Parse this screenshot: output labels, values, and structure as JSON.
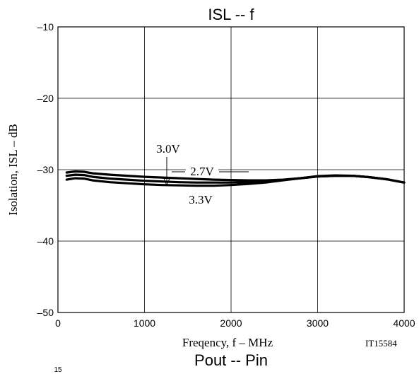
{
  "chart_data": {
    "type": "line",
    "title": "ISL -- f",
    "xlabel": "Freqency, f  –  MHz",
    "ylabel": "Isolation, ISL  –  dB",
    "xlim": [
      0,
      4000
    ],
    "ylim": [
      -50,
      -10
    ],
    "xticks": [
      0,
      1000,
      2000,
      3000,
      4000
    ],
    "xtick_labels": [
      "0",
      "1000",
      "2000",
      "3000",
      "4000"
    ],
    "yticks": [
      -50,
      -40,
      -30,
      -20,
      -10
    ],
    "ytick_labels": [
      "–50",
      "–40",
      "–30",
      "–20",
      "–10"
    ],
    "grid": true,
    "series": [
      {
        "name": "2.7V",
        "x": [
          100,
          200,
          300,
          400,
          600,
          800,
          1000,
          1200,
          1400,
          1600,
          1800,
          2000,
          2200,
          2400,
          2600,
          2800,
          3000,
          3200,
          3400,
          3600,
          3800,
          4000
        ],
        "y": [
          -30.4,
          -30.25,
          -30.3,
          -30.5,
          -30.7,
          -30.85,
          -31.0,
          -31.1,
          -31.2,
          -31.3,
          -31.4,
          -31.45,
          -31.5,
          -31.5,
          -31.4,
          -31.2,
          -30.9,
          -30.8,
          -30.85,
          -31.05,
          -31.35,
          -31.8
        ]
      },
      {
        "name": "3.0V",
        "x": [
          100,
          200,
          300,
          400,
          600,
          800,
          1000,
          1200,
          1400,
          1600,
          1800,
          2000,
          2200,
          2400,
          2600,
          2800,
          3000,
          3200,
          3400,
          3600,
          3800,
          4000
        ],
        "y": [
          -30.85,
          -30.7,
          -30.75,
          -31.0,
          -31.25,
          -31.4,
          -31.55,
          -31.65,
          -31.75,
          -31.8,
          -31.8,
          -31.8,
          -31.75,
          -31.65,
          -31.45,
          -31.2,
          -30.95,
          -30.85,
          -30.85,
          -31.05,
          -31.35,
          -31.8
        ]
      },
      {
        "name": "3.3V",
        "x": [
          100,
          200,
          300,
          400,
          600,
          800,
          1000,
          1200,
          1400,
          1600,
          1800,
          2000,
          2200,
          2400,
          2600,
          2800,
          3000,
          3200,
          3400,
          3600,
          3800,
          4000
        ],
        "y": [
          -31.4,
          -31.2,
          -31.25,
          -31.5,
          -31.75,
          -31.9,
          -32.05,
          -32.15,
          -32.2,
          -32.25,
          -32.25,
          -32.15,
          -32.0,
          -31.8,
          -31.5,
          -31.2,
          -30.95,
          -30.85,
          -30.85,
          -31.05,
          -31.35,
          -31.8
        ]
      }
    ],
    "annotations": [
      {
        "text": "3.0V",
        "series": "3.0V"
      },
      {
        "text": "2.7V",
        "series": "2.7V"
      },
      {
        "text": "3.3V",
        "series": "3.3V"
      }
    ],
    "code_label": "IT15584",
    "next_chart_title": "Pout -- Pin",
    "cut_off_label": "15"
  }
}
